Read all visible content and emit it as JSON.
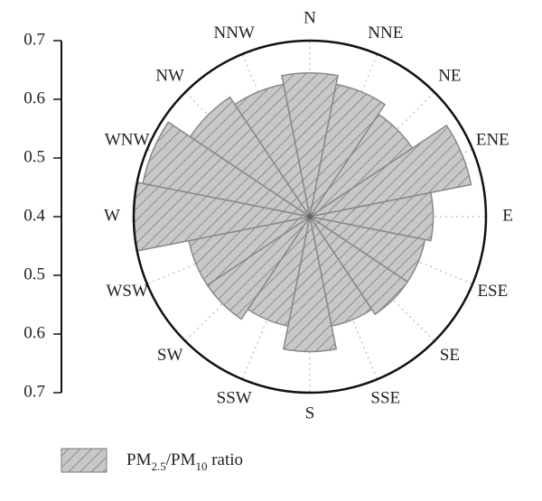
{
  "chart_data": {
    "type": "polar_bar",
    "categories": [
      "N",
      "NNE",
      "NE",
      "ENE",
      "E",
      "ESE",
      "SE",
      "SSE",
      "S",
      "SSW",
      "SW",
      "WSW",
      "W",
      "WNW",
      "NW",
      "NNW"
    ],
    "series": [
      {
        "name": "PM2.5/PM10 ratio",
        "color": "#c8c8c8",
        "values": [
          0.645,
          0.63,
          0.61,
          0.68,
          0.61,
          0.6,
          0.6,
          0.59,
          0.63,
          0.59,
          0.61,
          0.61,
          0.7,
          0.69,
          0.645,
          0.63
        ]
      }
    ],
    "ylim": [
      0.4,
      0.7
    ],
    "yticks": [
      0.4,
      0.5,
      0.6,
      0.7
    ]
  }
}
